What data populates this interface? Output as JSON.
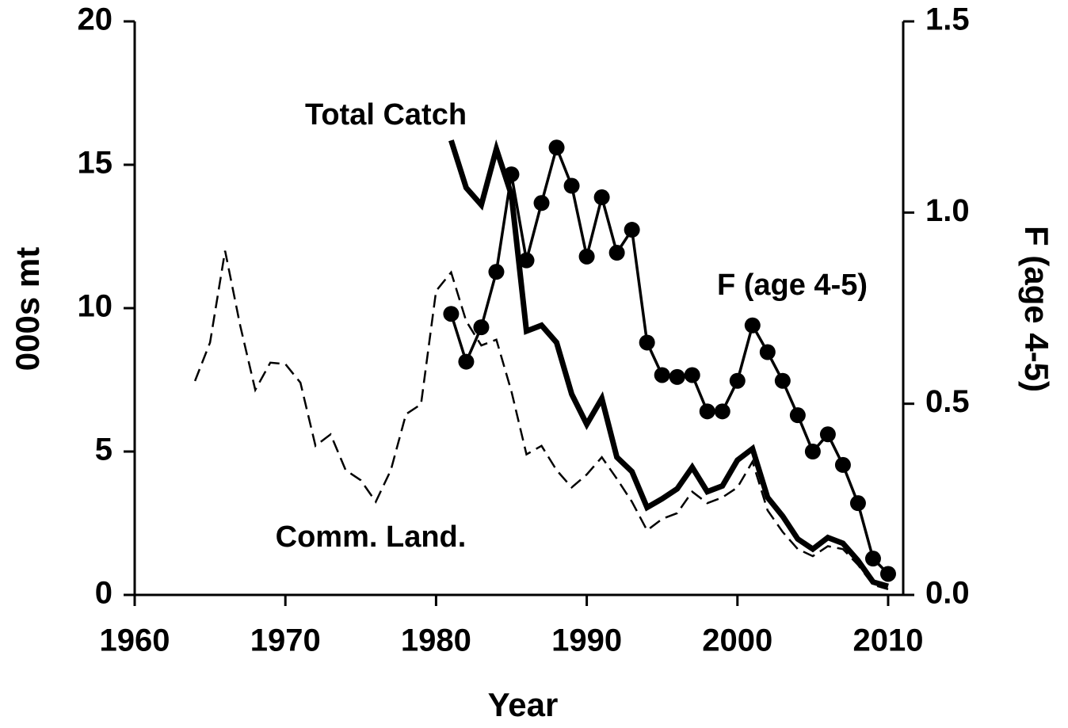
{
  "chart_data": {
    "type": "line",
    "xlabel": "Year",
    "ylabel": "000s mt",
    "y2label": "F (age 4-5)",
    "x": [
      1964,
      1965,
      1966,
      1967,
      1968,
      1969,
      1970,
      1971,
      1972,
      1973,
      1974,
      1975,
      1976,
      1977,
      1978,
      1979,
      1980,
      1981,
      1982,
      1983,
      1984,
      1985,
      1986,
      1987,
      1988,
      1989,
      1990,
      1991,
      1992,
      1993,
      1994,
      1995,
      1996,
      1997,
      1998,
      1999,
      2000,
      2001,
      2002,
      2003,
      2004,
      2005,
      2006,
      2007,
      2008,
      2009,
      2010
    ],
    "series": [
      {
        "name": "Comm. Land.",
        "color": "#000000",
        "style": "dashed",
        "values": [
          7.46,
          8.8,
          12.0,
          9.4,
          7.15,
          8.1,
          8.05,
          7.4,
          5.2,
          5.6,
          4.35,
          4.0,
          3.25,
          4.35,
          6.3,
          6.65,
          10.6,
          11.25,
          9.55,
          8.7,
          8.9,
          7.1,
          4.9,
          5.2,
          4.35,
          3.75,
          4.2,
          4.8,
          4.05,
          3.25,
          2.25,
          2.65,
          2.85,
          3.6,
          3.2,
          3.4,
          3.75,
          4.65,
          2.95,
          2.2,
          1.6,
          1.35,
          1.7,
          1.6,
          1.05,
          0.35,
          0.2
        ]
      },
      {
        "name": "Total Catch",
        "color": "#000000",
        "style": "thick",
        "values": [
          null,
          null,
          null,
          null,
          null,
          null,
          null,
          null,
          null,
          null,
          null,
          null,
          null,
          null,
          null,
          null,
          null,
          15.85,
          14.2,
          13.6,
          15.55,
          13.95,
          9.2,
          9.4,
          8.8,
          7.0,
          5.95,
          6.85,
          4.8,
          4.3,
          3.05,
          3.35,
          3.7,
          4.45,
          3.6,
          3.8,
          4.7,
          5.1,
          3.4,
          2.75,
          1.95,
          1.6,
          2.0,
          1.8,
          1.2,
          0.45,
          0.3
        ]
      },
      {
        "name": "F (age 4-5)",
        "color": "#000000",
        "style": "markers",
        "axis": "y2",
        "values": [
          null,
          null,
          null,
          null,
          null,
          null,
          null,
          null,
          null,
          null,
          null,
          null,
          null,
          null,
          null,
          null,
          null,
          0.735,
          0.61,
          0.7,
          0.845,
          1.1,
          0.875,
          1.025,
          1.17,
          1.07,
          0.885,
          1.04,
          0.895,
          0.955,
          0.66,
          0.575,
          0.57,
          0.575,
          0.48,
          0.48,
          0.56,
          0.705,
          0.635,
          0.56,
          0.47,
          0.375,
          0.42,
          0.34,
          0.24,
          0.095,
          0.055
        ]
      }
    ],
    "xlim": [
      1960,
      2011
    ],
    "xticks": [
      1960,
      1970,
      1980,
      1990,
      2000,
      2010
    ],
    "ylim": [
      0,
      20
    ],
    "yticks": [
      0,
      5,
      10,
      15,
      20
    ],
    "y2lim": [
      0,
      1.5
    ],
    "y2ticks": [
      {
        "value": 0,
        "label": "0.0"
      },
      0.5,
      {
        "value": 1,
        "label": "1.0"
      },
      1.5
    ],
    "grid": false,
    "legend": false
  }
}
